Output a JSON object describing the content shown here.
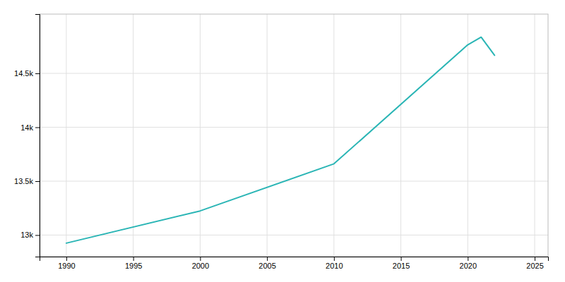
{
  "chart_data": {
    "type": "line",
    "x": [
      1990,
      2000,
      2010,
      2020,
      2021,
      2022
    ],
    "values": [
      12925,
      13224,
      13661,
      14765,
      14836,
      14668
    ],
    "color": "#2ab5b5",
    "xlim": [
      1988,
      2026
    ],
    "ylim": [
      12800,
      15050
    ],
    "xticks": [
      1990,
      1995,
      2000,
      2005,
      2010,
      2015,
      2020,
      2025
    ],
    "yticks": [
      {
        "value": 13000,
        "label": "13k"
      },
      {
        "value": 13500,
        "label": "13.5k"
      },
      {
        "value": 14000,
        "label": "14k"
      },
      {
        "value": 14500,
        "label": "14.5k"
      }
    ],
    "grid": true
  }
}
